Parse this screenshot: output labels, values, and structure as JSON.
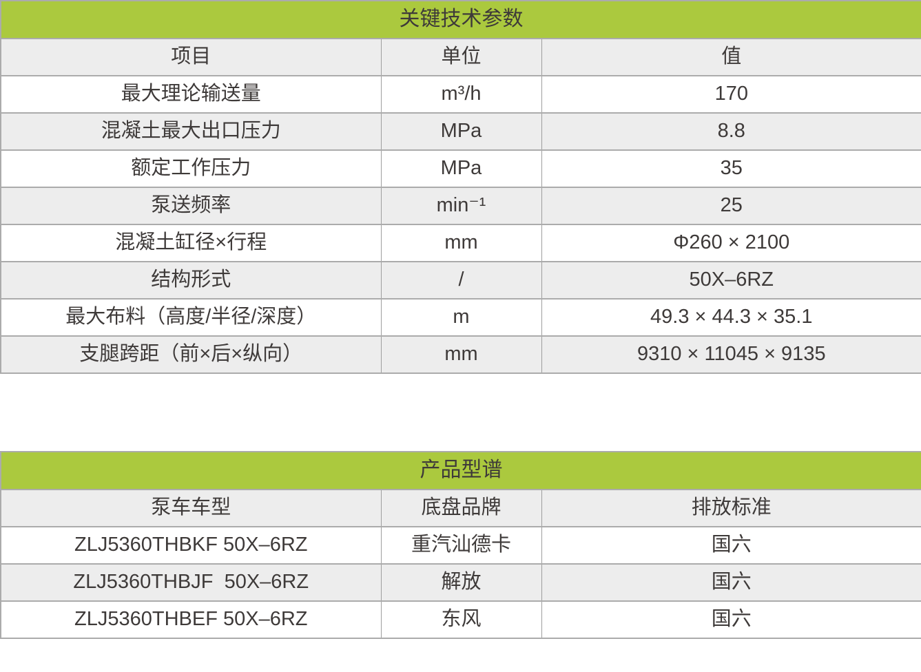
{
  "colors": {
    "header_green": "#abc93e",
    "row_alt": "#ededed",
    "row_bg": "#ffffff",
    "border": "#ababab",
    "text": "#3e3a39"
  },
  "param_table": {
    "title": "关键技术参数",
    "headers": [
      "项目",
      "单位",
      "值"
    ],
    "rows": [
      [
        "最大理论输送量",
        "m³/h",
        "170"
      ],
      [
        "混凝土最大出口压力",
        "MPa",
        "8.8"
      ],
      [
        "额定工作压力",
        "MPa",
        "35"
      ],
      [
        "泵送频率",
        "min⁻¹",
        "25"
      ],
      [
        "混凝土缸径×行程",
        "mm",
        "Φ260 × 2100"
      ],
      [
        "结构形式",
        "/",
        "50X–6RZ"
      ],
      [
        "最大布料（高度/半径/深度）",
        "m",
        "49.3 × 44.3 × 35.1"
      ],
      [
        "支腿跨距（前×后×纵向）",
        "mm",
        "9310 × 11045 × 9135"
      ]
    ]
  },
  "spectrum_table": {
    "title": "产品型谱",
    "headers": [
      "泵车车型",
      "底盘品牌",
      "排放标准"
    ],
    "rows": [
      [
        "ZLJ5360THBKF 50X–6RZ",
        "重汽汕德卡",
        "国六"
      ],
      [
        "ZLJ5360THBJF  50X–6RZ",
        "解放",
        "国六"
      ],
      [
        "ZLJ5360THBEF 50X–6RZ",
        "东风",
        "国六"
      ]
    ]
  }
}
